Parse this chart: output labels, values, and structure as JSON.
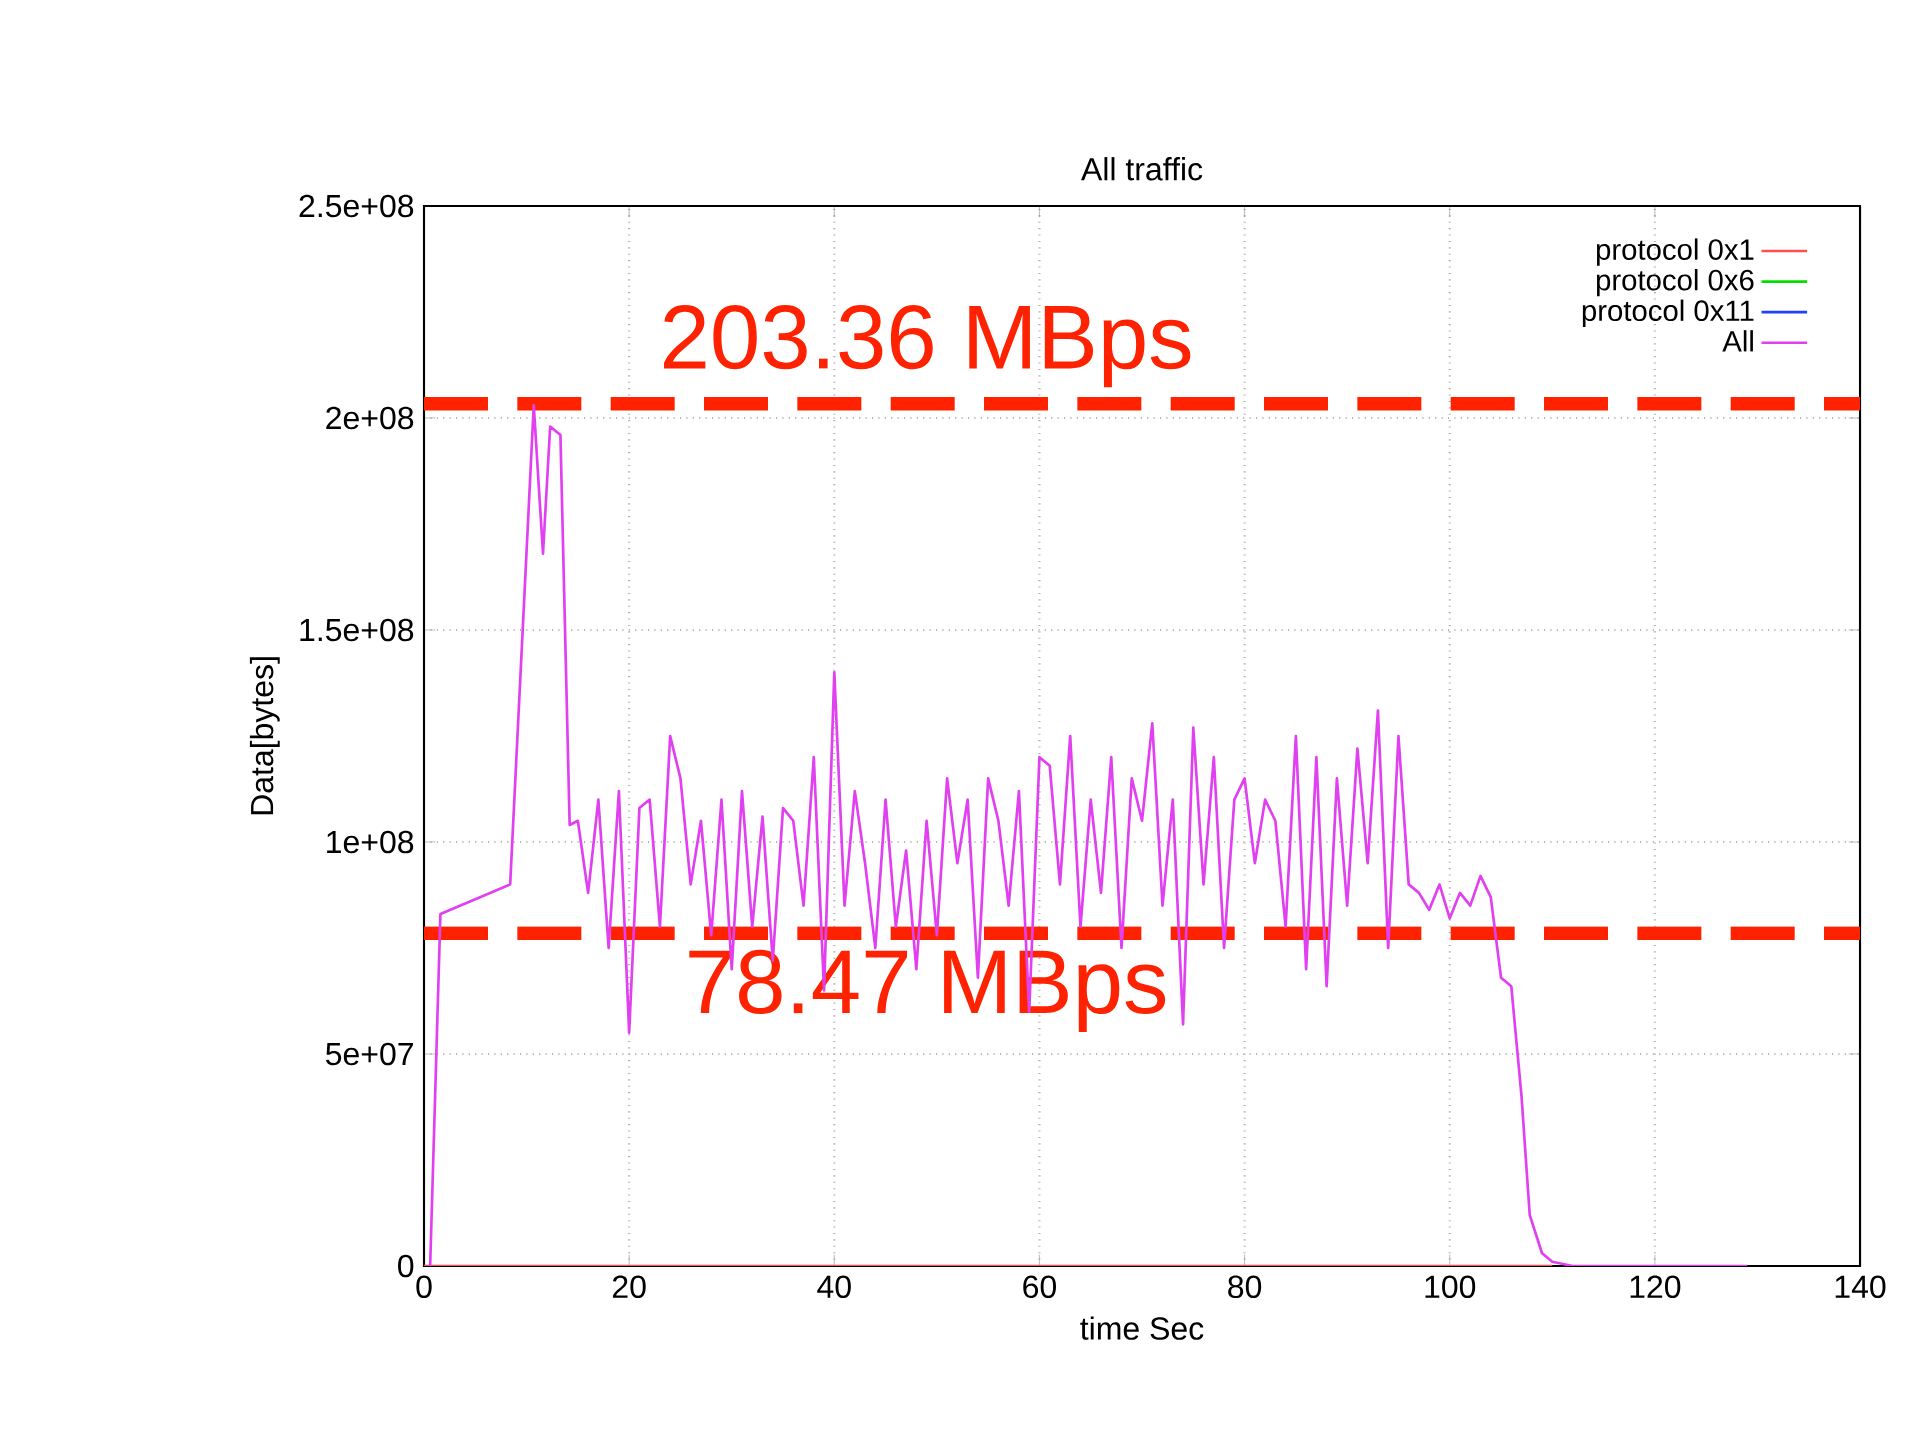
{
  "chart_data": {
    "type": "line",
    "title": "All traffic",
    "xlabel": "time Sec",
    "ylabel": "Data[bytes]",
    "xlim": [
      0,
      140
    ],
    "xticks": [
      0,
      20,
      40,
      60,
      80,
      100,
      120,
      140
    ],
    "ylim": [
      0,
      250000000.0
    ],
    "yticks": [
      {
        "value": 0,
        "label": "0"
      },
      {
        "value": 50000000.0,
        "label": "5e+07"
      },
      {
        "value": 100000000.0,
        "label": "1e+08"
      },
      {
        "value": 150000000.0,
        "label": "1.5e+08"
      },
      {
        "value": 200000000.0,
        "label": "2e+08"
      },
      {
        "value": 250000000.0,
        "label": "2.5e+08"
      }
    ],
    "grid": true,
    "legend": "top right",
    "series": [
      {
        "name": "protocol 0x1",
        "color": "#ff5050",
        "x": [
          0,
          10,
          20,
          30,
          40,
          50,
          60,
          70,
          80,
          90,
          100,
          110
        ],
        "values": [
          0,
          0,
          0,
          0,
          0,
          0,
          0,
          0,
          0,
          0,
          0,
          0
        ]
      },
      {
        "name": "protocol 0x6",
        "color": "#00e000"
      },
      {
        "name": "protocol 0x11",
        "color": "#2040ff"
      },
      {
        "name": "All",
        "color": "#e040f0",
        "x": [
          0.6,
          1.6,
          8.4,
          10.7,
          11.6,
          12.3,
          13.3,
          14.2,
          15,
          16,
          17,
          18,
          19,
          20,
          21,
          22,
          23,
          24,
          25,
          26,
          27,
          28,
          29,
          30,
          31,
          32,
          33,
          34,
          35,
          36,
          37,
          38,
          39,
          40,
          41,
          42,
          43,
          44,
          45,
          46,
          47,
          48,
          49,
          50,
          51,
          52,
          53,
          54,
          55,
          56,
          57,
          58,
          59,
          60,
          61,
          62,
          63,
          64,
          65,
          66,
          67,
          68,
          69,
          70,
          71,
          72,
          73,
          74,
          75,
          76,
          77,
          78,
          79,
          80,
          81,
          82,
          83,
          84,
          85,
          86,
          87,
          88,
          89,
          90,
          91,
          92,
          93,
          94,
          95,
          96,
          97,
          98,
          99,
          100,
          101,
          102,
          103,
          104,
          105,
          106,
          107,
          107.8,
          109,
          110,
          112,
          115,
          120,
          125,
          129
        ],
        "values": [
          0,
          83000000.0,
          90000000.0,
          203000000.0,
          168000000.0,
          198000000.0,
          196000000.0,
          104000000.0,
          105000000.0,
          88000000.0,
          110000000.0,
          75000000.0,
          112000000.0,
          55000000.0,
          108000000.0,
          110000000.0,
          80000000.0,
          125000000.0,
          115000000.0,
          90000000.0,
          105000000.0,
          78000000.0,
          110000000.0,
          70000000.0,
          112000000.0,
          80000000.0,
          106000000.0,
          72000000.0,
          108000000.0,
          105000000.0,
          85000000.0,
          120000000.0,
          65000000.0,
          140000000.0,
          85000000.0,
          112000000.0,
          95000000.0,
          75000000.0,
          110000000.0,
          80000000.0,
          98000000.0,
          70000000.0,
          105000000.0,
          78000000.0,
          115000000.0,
          95000000.0,
          110000000.0,
          68000000.0,
          115000000.0,
          105000000.0,
          85000000.0,
          112000000.0,
          60000000.0,
          120000000.0,
          118000000.0,
          90000000.0,
          125000000.0,
          80000000.0,
          110000000.0,
          88000000.0,
          120000000.0,
          75000000.0,
          115000000.0,
          105000000.0,
          128000000.0,
          85000000.0,
          110000000.0,
          57000000.0,
          127000000.0,
          90000000.0,
          120000000.0,
          75000000.0,
          110000000.0,
          115000000.0,
          95000000.0,
          110000000.0,
          105000000.0,
          80000000.0,
          125000000.0,
          70000000.0,
          120000000.0,
          66000000.0,
          115000000.0,
          85000000.0,
          122000000.0,
          95000000.0,
          131000000.0,
          75000000.0,
          125000000.0,
          90000000.0,
          88000000.0,
          84000000.0,
          90000000.0,
          82000000.0,
          88000000.0,
          85000000.0,
          92000000.0,
          87000000.0,
          68000000.0,
          66000000.0,
          40000000.0,
          12000000.0,
          3000000.0,
          1000000.0,
          0,
          0,
          0,
          0,
          0
        ]
      }
    ],
    "ref_lines": [
      {
        "axis": "y",
        "value": 203360000.0,
        "label": "203.36 MBps",
        "color": "#ff2200",
        "line_style": "dashed"
      },
      {
        "axis": "y",
        "value": 78470000.0,
        "label": "78.47 MBps",
        "color": "#ff2200",
        "line_style": "dashed"
      }
    ]
  }
}
